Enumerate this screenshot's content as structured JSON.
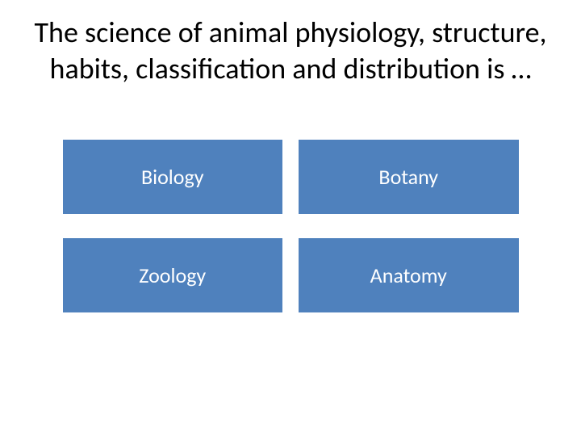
{
  "question": {
    "text": "The science of animal physiology, structure, habits, classification and distribution is …",
    "fontsize": 36,
    "color": "#000000"
  },
  "answers": {
    "button_color": "#4f81bd",
    "text_color": "#ffffff",
    "fontsize": 26,
    "options": [
      {
        "label": "Biology"
      },
      {
        "label": "Botany"
      },
      {
        "label": "Zoology"
      },
      {
        "label": "Anatomy"
      }
    ]
  },
  "layout": {
    "background_color": "#ffffff",
    "grid_gap_row": 30,
    "grid_gap_col": 20
  }
}
